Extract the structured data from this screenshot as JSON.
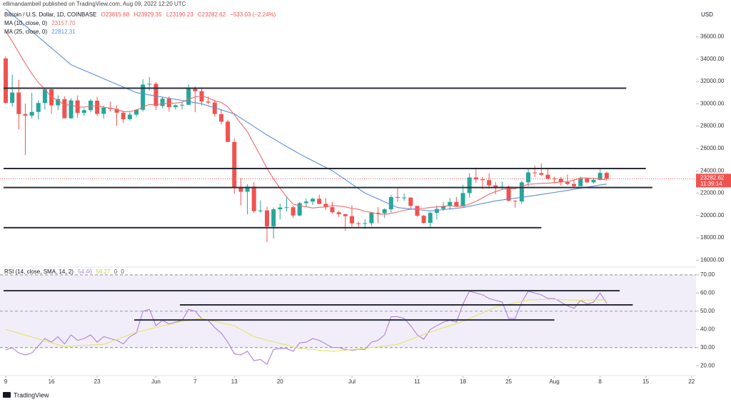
{
  "header": {
    "published": "ellimandambell published on TradingView.com, Aug 09, 2022 12:20 UTC",
    "symbol": "Bitcoin / U.S. Dollar, 1D, COINBASE",
    "ohlc": [
      "O23815.68",
      "H23929.35",
      "L23190.23",
      "C23282.62",
      "−533.03 (−2.24%)"
    ],
    "ma10": {
      "name": "MA (10, close, 0)",
      "value": "23157.70"
    },
    "ma25": {
      "name": "MA (25, close, 0)",
      "value": "22812.31"
    },
    "rsi": {
      "name": "RSI (14, close, SMA, 14, 2)",
      "values": [
        "54.46",
        "56.27",
        "0",
        "0"
      ]
    }
  },
  "footer": "TradingView",
  "chart_data": [
    {
      "type": "candlestick",
      "currency": "USD",
      "up_color": "#26a69a",
      "down_color": "#ef5350",
      "x": [
        "2022-05-09",
        "2022-05-10",
        "2022-05-11",
        "2022-05-12",
        "2022-05-13",
        "2022-05-14",
        "2022-05-15",
        "2022-05-16",
        "2022-05-17",
        "2022-05-18",
        "2022-05-19",
        "2022-05-20",
        "2022-05-21",
        "2022-05-22",
        "2022-05-23",
        "2022-05-24",
        "2022-05-25",
        "2022-05-26",
        "2022-05-27",
        "2022-05-28",
        "2022-05-29",
        "2022-05-30",
        "2022-05-31",
        "2022-06-01",
        "2022-06-02",
        "2022-06-03",
        "2022-06-04",
        "2022-06-05",
        "2022-06-06",
        "2022-06-07",
        "2022-06-08",
        "2022-06-09",
        "2022-06-10",
        "2022-06-11",
        "2022-06-12",
        "2022-06-13",
        "2022-06-14",
        "2022-06-15",
        "2022-06-16",
        "2022-06-17",
        "2022-06-18",
        "2022-06-19",
        "2022-06-20",
        "2022-06-21",
        "2022-06-22",
        "2022-06-23",
        "2022-06-24",
        "2022-06-25",
        "2022-06-26",
        "2022-06-27",
        "2022-06-28",
        "2022-06-29",
        "2022-06-30",
        "2022-07-01",
        "2022-07-02",
        "2022-07-03",
        "2022-07-04",
        "2022-07-05",
        "2022-07-06",
        "2022-07-07",
        "2022-07-08",
        "2022-07-09",
        "2022-07-10",
        "2022-07-11",
        "2022-07-12",
        "2022-07-13",
        "2022-07-14",
        "2022-07-15",
        "2022-07-16",
        "2022-07-17",
        "2022-07-18",
        "2022-07-19",
        "2022-07-20",
        "2022-07-21",
        "2022-07-22",
        "2022-07-23",
        "2022-07-24",
        "2022-07-25",
        "2022-07-26",
        "2022-07-27",
        "2022-07-28",
        "2022-07-29",
        "2022-07-30",
        "2022-07-31",
        "2022-08-01",
        "2022-08-02",
        "2022-08-03",
        "2022-08-04",
        "2022-08-05",
        "2022-08-06",
        "2022-08-07",
        "2022-08-08",
        "2022-08-09"
      ],
      "open": [
        34060,
        30080,
        31010,
        29080,
        28940,
        29270,
        30070,
        31300,
        29860,
        30420,
        28700,
        30300,
        29180,
        29430,
        30280,
        29100,
        29650,
        29540,
        29200,
        28620,
        29030,
        29460,
        31730,
        31790,
        29800,
        30460,
        29700,
        29860,
        29910,
        31370,
        31130,
        30200,
        30110,
        29080,
        28400,
        26580,
        22480,
        22120,
        22580,
        20380,
        20450,
        19010,
        20550,
        20710,
        20730,
        19990,
        21100,
        21240,
        21490,
        21030,
        20740,
        20280,
        20110,
        19930,
        19290,
        19240,
        19300,
        20230,
        20190,
        20550,
        21640,
        21590,
        21600,
        20850,
        19970,
        19330,
        20230,
        20580,
        20830,
        21200,
        20800,
        22000,
        23400,
        23230,
        23160,
        22690,
        22460,
        22580,
        21310,
        21250,
        22960,
        23850,
        23790,
        23640,
        23300,
        23280,
        22990,
        22820,
        22620,
        23300,
        22960,
        23180,
        23815.68
      ],
      "high": [
        34240,
        32630,
        32150,
        30020,
        30990,
        30320,
        31430,
        31300,
        30760,
        30660,
        30500,
        30750,
        29600,
        30440,
        30640,
        29830,
        30200,
        29850,
        29380,
        29240,
        29530,
        32200,
        32400,
        31950,
        30650,
        30660,
        29960,
        30150,
        31750,
        31560,
        31340,
        30650,
        30360,
        29440,
        28560,
        26880,
        23330,
        22800,
        22980,
        21350,
        20780,
        20700,
        21060,
        21700,
        20860,
        21200,
        21500,
        21600,
        21860,
        21540,
        21200,
        20410,
        20140,
        20900,
        19440,
        19660,
        20290,
        20740,
        20640,
        21850,
        22520,
        21940,
        21600,
        20860,
        20040,
        20320,
        20890,
        21200,
        21560,
        21660,
        22740,
        23770,
        24280,
        23440,
        23760,
        22990,
        23020,
        22670,
        21360,
        23100,
        24200,
        24450,
        24650,
        24200,
        23480,
        23460,
        23660,
        23230,
        23460,
        23360,
        23380,
        24240,
        23929.35
      ],
      "low": [
        30030,
        29730,
        27720,
        25400,
        28710,
        28600,
        29490,
        29100,
        29440,
        28700,
        28670,
        28750,
        28940,
        29240,
        28880,
        28650,
        29300,
        28030,
        28280,
        28500,
        28820,
        29300,
        31200,
        29450,
        29600,
        29300,
        29480,
        29500,
        29880,
        29250,
        29850,
        29950,
        28860,
        28150,
        26600,
        21930,
        20900,
        20100,
        20230,
        20230,
        17600,
        17940,
        19650,
        20350,
        19780,
        19900,
        20750,
        20930,
        21000,
        20500,
        20180,
        19850,
        18620,
        19000,
        18980,
        18780,
        19040,
        19300,
        19770,
        20240,
        21200,
        21320,
        20650,
        19870,
        19240,
        18920,
        19630,
        20400,
        20500,
        20760,
        20780,
        21580,
        22920,
        22340,
        22400,
        21900,
        22290,
        21260,
        20700,
        21040,
        22600,
        23440,
        23520,
        23220,
        22840,
        22680,
        22700,
        22440,
        22600,
        22930,
        22850,
        23150,
        23190.23
      ],
      "close": [
        30080,
        31010,
        29080,
        28940,
        29270,
        30070,
        31300,
        29860,
        30420,
        28700,
        30300,
        29180,
        29430,
        30280,
        29100,
        29650,
        29540,
        29200,
        28620,
        29030,
        29460,
        31730,
        31790,
        29800,
        30460,
        29700,
        29860,
        29910,
        31370,
        31130,
        30200,
        30110,
        29080,
        28400,
        26580,
        22480,
        22120,
        22580,
        20380,
        20450,
        19010,
        20550,
        20710,
        20730,
        19990,
        21100,
        21240,
        21490,
        21030,
        20740,
        20280,
        20110,
        19930,
        19290,
        19240,
        19300,
        20230,
        20190,
        20550,
        21640,
        21590,
        21600,
        20850,
        19970,
        19330,
        20230,
        20580,
        20830,
        21200,
        20800,
        22000,
        23400,
        23230,
        23160,
        22690,
        22460,
        22580,
        21310,
        21250,
        22960,
        23850,
        23790,
        23640,
        23300,
        23280,
        22990,
        22820,
        22620,
        23300,
        22960,
        23180,
        23810,
        23282.62
      ],
      "series": [
        {
          "name": "MA (10, close, 0)",
          "color": "#ec6a6a",
          "values": [
            36500,
            35600,
            34600,
            33600,
            32700,
            31900,
            31300,
            30600,
            30300,
            29900,
            29900,
            29700,
            29700,
            29800,
            29800,
            29700,
            29600,
            29500,
            29300,
            29300,
            29449,
            29704,
            29940,
            29892,
            30028,
            30033,
            30065,
            30136,
            30411,
            30621,
            30695,
            30533,
            30262,
            30122,
            29734,
            29012,
            28238,
            27505,
            26406,
            25338,
            24219,
            23263,
            22426,
            21659,
            21000,
            20862,
            20774,
            20665,
            20730,
            20759,
            20886,
            20842,
            20764,
            20620,
            20545,
            20365,
            20264,
            20134,
            20086,
            20176,
            20307,
            20456,
            20548,
            20616,
            20625,
            20718,
            20753,
            20817,
            20882,
            20798,
            20839,
            21019,
            21257,
            21576,
            21912,
            22135,
            22335,
            22383,
            22388,
            22604,
            22789,
            22828,
            22869,
            22883,
            22942,
            22995,
            23019,
            23150,
            23355,
            23355,
            23288,
            23290,
            23157.7
          ]
        },
        {
          "name": "MA (25, close, 0)",
          "color": "#5b8fd9",
          "values": [
            38500,
            38000,
            37500,
            37000,
            36500,
            36000,
            35500,
            35000,
            34500,
            34000,
            33500,
            33250,
            33000,
            32750,
            32500,
            32250,
            32000,
            31750,
            31500,
            31250,
            31000,
            30900,
            30800,
            30700,
            30600,
            30500,
            30400,
            30300,
            30200,
            30100,
            30000,
            29820,
            29640,
            29460,
            29280,
            29100,
            28720,
            28340,
            27960,
            27580,
            27200,
            26860,
            26520,
            26180,
            25840,
            25500,
            25200,
            24900,
            24600,
            24300,
            24000,
            23600,
            23200,
            22800,
            22400,
            22000,
            21740,
            21480,
            21220,
            20960,
            20700,
            20640,
            20580,
            20520,
            20460,
            20400,
            20460,
            20520,
            20580,
            20640,
            20700,
            20820,
            20940,
            21060,
            21180,
            21300,
            21380,
            21460,
            21540,
            21620,
            21700,
            21790,
            21880,
            21970,
            22060,
            22150,
            22245,
            22340,
            22435,
            22530,
            22625,
            22720,
            22812.31
          ]
        }
      ],
      "last": {
        "label": "23282.62",
        "countdown": "11:39:14"
      },
      "ylim": [
        15500,
        39300
      ],
      "yticks": [
        {
          "value": 16000,
          "label": "16000.00"
        },
        {
          "value": 18000,
          "label": "18000.00"
        },
        {
          "value": 20000,
          "label": "20000.00"
        },
        {
          "value": 22000,
          "label": "22000.00"
        },
        {
          "value": 24000,
          "label": "24000.00"
        },
        {
          "value": 26000,
          "label": "26000.00"
        },
        {
          "value": 28000,
          "label": "28000.00"
        },
        {
          "value": 30000,
          "label": "30000.00"
        },
        {
          "value": 32000,
          "label": "32000.00"
        },
        {
          "value": 34000,
          "label": "34000.00"
        },
        {
          "value": 36000,
          "label": "36000.00"
        }
      ],
      "xticks": [
        {
          "value": "2022-05-09",
          "label": "9"
        },
        {
          "value": "2022-05-16",
          "label": "16"
        },
        {
          "value": "2022-05-23",
          "label": "23"
        },
        {
          "value": "2022-06-01",
          "label": "Jun"
        },
        {
          "value": "2022-06-07",
          "label": "7"
        },
        {
          "value": "2022-06-13",
          "label": "13"
        },
        {
          "value": "2022-06-20",
          "label": "20"
        },
        {
          "value": "2022-07-01",
          "label": "Jul"
        },
        {
          "value": "2022-07-11",
          "label": "11"
        },
        {
          "value": "2022-07-18",
          "label": "18"
        },
        {
          "value": "2022-07-25",
          "label": "25"
        },
        {
          "value": "2022-08-01",
          "label": "Aug"
        },
        {
          "value": "2022-08-08",
          "label": "8"
        },
        {
          "value": "2022-08-15",
          "label": "15"
        },
        {
          "value": "2022-08-22",
          "label": "22"
        }
      ],
      "hlines": [
        {
          "value": 31400,
          "start": "2022-05-09",
          "end": "2022-08-12"
        },
        {
          "value": 24200,
          "start": "2022-05-09",
          "end": "2022-08-15"
        },
        {
          "value": 22500,
          "start": "2022-05-09",
          "end": "2022-08-16"
        },
        {
          "value": 18900,
          "start": "2022-05-09",
          "end": "2022-07-30"
        }
      ]
    },
    {
      "type": "line",
      "series": [
        {
          "name": "RSI",
          "color": "#b07fe0",
          "values": [
            28.7,
            30,
            27,
            26,
            27,
            31,
            35,
            33,
            36,
            32,
            37,
            34,
            35,
            37,
            33,
            36,
            35,
            34,
            32,
            36,
            38,
            50,
            51,
            42,
            45,
            43,
            44,
            45,
            51,
            50,
            46,
            45,
            41,
            38,
            33,
            26.5,
            26,
            28,
            22.8,
            23.5,
            20.8,
            29,
            29.5,
            29.5,
            28,
            32.6,
            33,
            35,
            34,
            32,
            30,
            30,
            29,
            28.5,
            29,
            29,
            33,
            34,
            37,
            47,
            47,
            46,
            42,
            37,
            34.6,
            40,
            42,
            44,
            45,
            44,
            54,
            61,
            60,
            59,
            57,
            56,
            55,
            46,
            46,
            55,
            61,
            60,
            59,
            57,
            57,
            55,
            53,
            51.5,
            56,
            54,
            55,
            60,
            54.46
          ]
        },
        {
          "name": "RSI-based MA",
          "color": "#e3e36a",
          "values": [
            40,
            39,
            37.9,
            36.9,
            35.8,
            34.8,
            33.7,
            32.7,
            31.6,
            30.6,
            30.8,
            31,
            31.2,
            31.4,
            31.6,
            31.8,
            33.1,
            34.5,
            35.8,
            37.2,
            38.5,
            39.3,
            40.2,
            41,
            41.9,
            42.7,
            43.6,
            44.4,
            44.9,
            45.5,
            46,
            45.2,
            44.4,
            43.6,
            42.8,
            42,
            40,
            38,
            36,
            35.1,
            34.1,
            33.2,
            32.3,
            31.4,
            30.4,
            29.5,
            29.2,
            28.9,
            28.6,
            28.3,
            28,
            28.3,
            28.6,
            28.9,
            29.2,
            29.5,
            30,
            30.4,
            30.9,
            31.3,
            31.8,
            33.1,
            34.5,
            35.8,
            37.2,
            38.5,
            39.7,
            40.9,
            42,
            43.2,
            44.4,
            46,
            47.6,
            49.1,
            50.7,
            52.3,
            53.1,
            53.9,
            54.6,
            55.4,
            56.2,
            56.3,
            56.5,
            56.6,
            56.5,
            56.4,
            56.2,
            56.1,
            56,
            56.1,
            56.2,
            56.3,
            56.27
          ]
        }
      ],
      "band": [
        30,
        70
      ],
      "levels": [
        70,
        50,
        30
      ],
      "ylim": [
        15,
        73.5
      ],
      "yticks": [
        {
          "value": 20,
          "label": "20.00"
        },
        {
          "value": 30,
          "label": "30.00"
        },
        {
          "value": 40,
          "label": "40.00"
        },
        {
          "value": 50,
          "label": "50.00"
        },
        {
          "value": 60,
          "label": "60.00"
        },
        {
          "value": 70,
          "label": "70.00"
        }
      ],
      "hlines": [
        {
          "value": 61.3,
          "start": "2022-05-09",
          "end": "2022-08-11"
        },
        {
          "value": 53.5,
          "start": "2022-06-05",
          "end": "2022-08-13"
        },
        {
          "value": 45.2,
          "start": "2022-05-29",
          "end": "2022-08-01"
        }
      ]
    }
  ]
}
